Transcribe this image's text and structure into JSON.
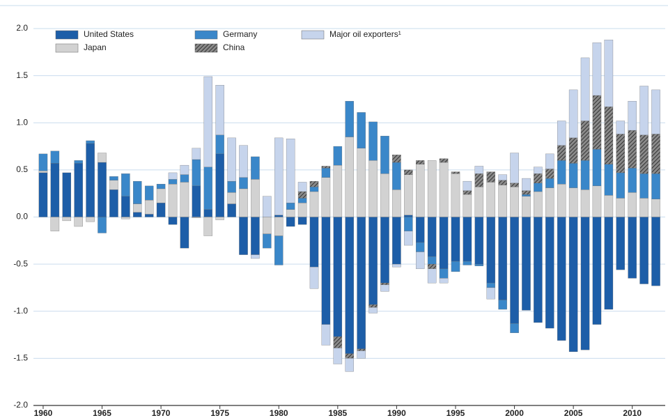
{
  "chart_data": {
    "type": "stacked_bar",
    "x": [
      1960,
      1961,
      1962,
      1963,
      1964,
      1965,
      1966,
      1967,
      1968,
      1969,
      1970,
      1971,
      1972,
      1973,
      1974,
      1975,
      1976,
      1977,
      1978,
      1979,
      1980,
      1981,
      1982,
      1983,
      1984,
      1985,
      1986,
      1987,
      1988,
      1989,
      1990,
      1991,
      1992,
      1993,
      1994,
      1995,
      1996,
      1997,
      1998,
      1999,
      2000,
      2001,
      2002,
      2003,
      2004,
      2005,
      2006,
      2007,
      2008,
      2009,
      2010,
      2011,
      2012
    ],
    "xlim": [
      1959.5,
      2012.5
    ],
    "xticks": [
      1960,
      1965,
      1970,
      1975,
      1980,
      1985,
      1990,
      1995,
      2000,
      2005,
      2010
    ],
    "ylim": [
      -2,
      2
    ],
    "yticks": [
      {
        "value": -2,
        "label": "-2.0"
      },
      -1.5,
      {
        "value": -1,
        "label": "-1.0"
      },
      -0.5,
      {
        "value": 0,
        "label": "0.0"
      },
      0.5,
      {
        "value": 1,
        "label": "1.0"
      },
      1.5,
      {
        "value": 2,
        "label": "2.0"
      }
    ],
    "grid": true,
    "legend": "upper left",
    "series": [
      {
        "name": "United States",
        "color": "#1d5ea8",
        "values": [
          0.47,
          0.57,
          0.47,
          0.57,
          0.78,
          0.58,
          0.29,
          0.22,
          0.05,
          0.03,
          0.15,
          -0.08,
          -0.33,
          0.33,
          0.08,
          0.67,
          0.14,
          -0.4,
          -0.4,
          0,
          0.02,
          -0.1,
          -0.08,
          -0.53,
          -1.14,
          -1.27,
          -1.45,
          -1.4,
          -0.93,
          -0.7,
          -0.5,
          0.02,
          -0.27,
          -0.42,
          -0.55,
          -0.47,
          -0.47,
          -0.5,
          -0.7,
          -0.88,
          -1.13,
          -0.99,
          -1.12,
          -1.18,
          -1.31,
          -1.43,
          -1.41,
          -1.14,
          -0.98,
          -0.56,
          -0.65,
          -0.71,
          -0.73
        ]
      },
      {
        "name": "Japan",
        "color": "#d2d2d2",
        "values": [
          0.02,
          -0.15,
          -0.04,
          -0.1,
          -0.05,
          0.1,
          0.1,
          -0.02,
          0.09,
          0.15,
          0.15,
          0.35,
          0.37,
          -0.01,
          -0.2,
          -0.03,
          0.12,
          0.3,
          0.4,
          -0.18,
          -0.2,
          0.08,
          0.15,
          0.27,
          0.42,
          0.55,
          0.85,
          0.73,
          0.6,
          0.46,
          0.29,
          0.43,
          0.56,
          0.6,
          0.58,
          0.46,
          0.24,
          0.32,
          0.37,
          0.34,
          0.32,
          0.22,
          0.27,
          0.31,
          0.35,
          0.31,
          0.29,
          0.33,
          0.23,
          0.2,
          0.26,
          0.2,
          0.19
        ]
      },
      {
        "name": "Germany",
        "color": "#3a87c9",
        "values": [
          0.18,
          0.13,
          0,
          0.03,
          0.03,
          -0.17,
          0.04,
          0.24,
          0.24,
          0.15,
          0.05,
          0.05,
          0.08,
          0.28,
          0.45,
          0.2,
          0.12,
          0.12,
          0.24,
          -0.15,
          -0.31,
          0.07,
          0.05,
          0.05,
          0.1,
          0.2,
          0.38,
          0.38,
          0.41,
          0.4,
          0.29,
          -0.15,
          -0.1,
          -0.08,
          -0.1,
          -0.11,
          -0.04,
          -0.02,
          -0.05,
          -0.1,
          -0.1,
          0.02,
          0.09,
          0.1,
          0.25,
          0.26,
          0.31,
          0.39,
          0.33,
          0.27,
          0.26,
          0.26,
          0.27
        ]
      },
      {
        "name": "China",
        "color": "#555555",
        "pattern": "hatch",
        "values": [
          0,
          0,
          0,
          0,
          0,
          0,
          0,
          0,
          0,
          0,
          0,
          0,
          0,
          0,
          0,
          0,
          0,
          0,
          0,
          0,
          0,
          0,
          0.07,
          0.06,
          0.02,
          -0.12,
          -0.05,
          -0.02,
          -0.03,
          -0.02,
          0.08,
          0.05,
          0.04,
          -0.05,
          0.04,
          0.02,
          0.04,
          0.14,
          0.11,
          0.05,
          0.04,
          0.04,
          0.1,
          0.1,
          0.16,
          0.27,
          0.42,
          0.57,
          0.61,
          0.41,
          0.4,
          0.41,
          0.42
        ]
      },
      {
        "name": "Major oil exporters¹",
        "color": "#c6d4ec",
        "values": [
          0,
          0,
          0,
          0,
          0,
          0,
          0,
          0,
          0,
          0,
          0,
          0.07,
          0.1,
          0.12,
          0.96,
          0.53,
          0.46,
          0.34,
          -0.04,
          0.22,
          0.82,
          0.68,
          0.1,
          -0.23,
          -0.22,
          -0.17,
          -0.14,
          -0.08,
          -0.06,
          -0.07,
          -0.03,
          -0.15,
          -0.18,
          -0.15,
          -0.05,
          0,
          0.1,
          0.08,
          -0.12,
          0.06,
          0.32,
          0.13,
          0.07,
          0.16,
          0.26,
          0.51,
          0.67,
          0.56,
          0.71,
          0.14,
          0.31,
          0.52,
          0.47
        ]
      }
    ]
  }
}
